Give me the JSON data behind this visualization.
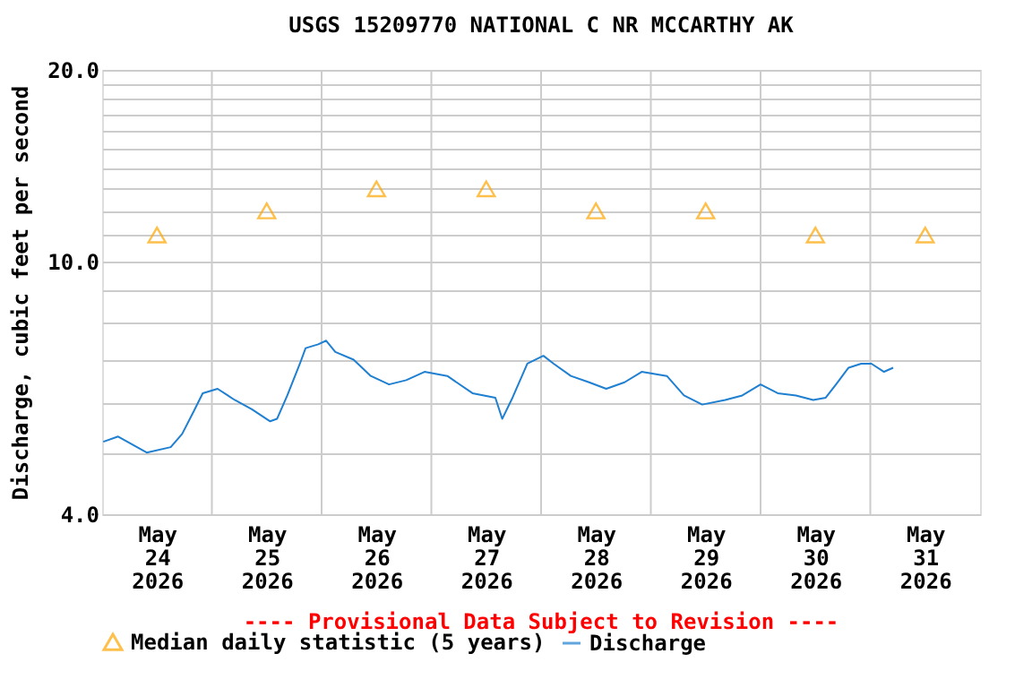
{
  "chart_data": {
    "type": "line",
    "title": "USGS 15209770 NATIONAL C NR MCCARTHY AK",
    "ylabel": "Discharge, cubic feet per second",
    "annotations": [
      "---- Provisional Data Subject to Revision ----"
    ],
    "log": "y",
    "grid": true,
    "legend": "bottom",
    "xlim": [
      "2026-05-24T00:00",
      "2026-06-01T00:00"
    ],
    "xticks": [
      {
        "value": "2026-05-24T12:00",
        "label": "May 24 2026"
      },
      {
        "value": "2026-05-25T12:00",
        "label": "May 25 2026"
      },
      {
        "value": "2026-05-26T12:00",
        "label": "May 26 2026"
      },
      {
        "value": "2026-05-27T12:00",
        "label": "May 27 2026"
      },
      {
        "value": "2026-05-28T12:00",
        "label": "May 28 2026"
      },
      {
        "value": "2026-05-29T12:00",
        "label": "May 29 2026"
      },
      {
        "value": "2026-05-30T12:00",
        "label": "May 30 2026"
      },
      {
        "value": "2026-05-31T12:00",
        "label": "May 31 2026"
      },
      {
        "value": "2026-05-25T00:00",
        "label": null
      },
      {
        "value": "2026-05-26T00:00",
        "label": null
      },
      {
        "value": "2026-05-27T00:00",
        "label": null
      },
      {
        "value": "2026-05-28T00:00",
        "label": null
      },
      {
        "value": "2026-05-29T00:00",
        "label": null
      },
      {
        "value": "2026-05-30T00:00",
        "label": null
      },
      {
        "value": "2026-05-31T00:00",
        "label": null
      }
    ],
    "ylim": [
      4,
      20
    ],
    "yticks": [
      {
        "value": 4,
        "label": "4.0"
      },
      {
        "value": 5,
        "label": null
      },
      {
        "value": 6,
        "label": null
      },
      {
        "value": 7,
        "label": null
      },
      {
        "value": 8,
        "label": null
      },
      {
        "value": 9,
        "label": null
      },
      {
        "value": 10,
        "label": "10.0"
      },
      {
        "value": 11,
        "label": null
      },
      {
        "value": 12,
        "label": null
      },
      {
        "value": 13,
        "label": null
      },
      {
        "value": 14,
        "label": null
      },
      {
        "value": 15,
        "label": null
      },
      {
        "value": 16,
        "label": null
      },
      {
        "value": 17,
        "label": null
      },
      {
        "value": 18,
        "label": null
      },
      {
        "value": 19,
        "label": null
      },
      {
        "value": 20,
        "label": "20.0"
      }
    ],
    "series": [
      {
        "name": "Median daily statistic (5 years)",
        "type": "scatter",
        "marker": "triangle",
        "color": "#ffa500",
        "x": [
          "2026-05-24T12:00",
          "2026-05-25T12:00",
          "2026-05-26T12:00",
          "2026-05-27T12:00",
          "2026-05-28T12:00",
          "2026-05-29T12:00",
          "2026-05-30T12:00",
          "2026-05-31T12:00"
        ],
        "values": [
          11,
          12,
          13,
          13,
          12,
          12,
          11,
          11
        ]
      },
      {
        "name": "Discharge",
        "marker": "none",
        "line_style": "solid",
        "color": "#1f7fd0",
        "x": [
          "2026-05-24T00:15",
          "2026-05-24T03:30",
          "2026-05-24T09:45",
          "2026-05-24T15:00",
          "2026-05-24T17:30",
          "2026-05-24T20:00",
          "2026-05-24T22:00",
          "2026-05-25T01:15",
          "2026-05-25T05:00",
          "2026-05-25T08:45",
          "2026-05-25T12:45",
          "2026-05-25T14:15",
          "2026-05-25T16:30",
          "2026-05-25T19:15",
          "2026-05-25T20:30",
          "2026-05-25T23:15",
          "2026-05-26T01:00",
          "2026-05-26T03:00",
          "2026-05-26T07:00",
          "2026-05-26T10:45",
          "2026-05-26T14:45",
          "2026-05-26T18:30",
          "2026-05-26T22:30",
          "2026-05-27T03:30",
          "2026-05-27T09:00",
          "2026-05-27T14:00",
          "2026-05-27T15:30",
          "2026-05-27T17:45",
          "2026-05-27T21:00",
          "2026-05-28T00:30",
          "2026-05-28T02:45",
          "2026-05-28T06:30",
          "2026-05-28T10:30",
          "2026-05-28T14:15",
          "2026-05-28T18:15",
          "2026-05-28T22:00",
          "2026-05-29T03:30",
          "2026-05-29T07:15",
          "2026-05-29T11:15",
          "2026-05-29T16:15",
          "2026-05-29T20:00",
          "2026-05-30T00:00",
          "2026-05-30T03:45",
          "2026-05-30T07:45",
          "2026-05-30T11:30",
          "2026-05-30T14:15",
          "2026-05-30T16:30",
          "2026-05-30T19:15",
          "2026-05-30T22:00",
          "2026-05-31T00:15",
          "2026-05-31T03:00",
          "2026-05-31T05:00"
        ],
        "values": [
          5.2,
          5.3,
          5.0,
          5.1,
          5.35,
          5.8,
          6.2,
          6.3,
          6.05,
          5.85,
          5.6,
          5.65,
          6.15,
          6.9,
          7.3,
          7.4,
          7.5,
          7.2,
          7.0,
          6.6,
          6.4,
          6.5,
          6.7,
          6.6,
          6.2,
          6.1,
          5.65,
          6.1,
          6.9,
          7.1,
          6.9,
          6.6,
          6.45,
          6.3,
          6.45,
          6.7,
          6.6,
          6.15,
          5.95,
          6.05,
          6.15,
          6.4,
          6.2,
          6.15,
          6.05,
          6.1,
          6.4,
          6.8,
          6.9,
          6.9,
          6.7,
          6.8
        ]
      }
    ]
  }
}
